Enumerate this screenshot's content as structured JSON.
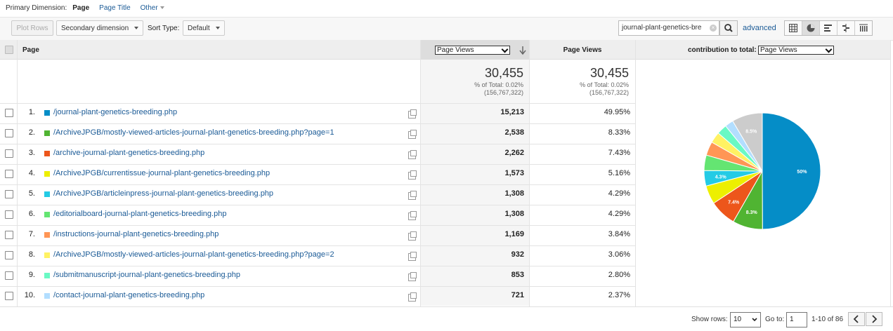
{
  "dimension_bar": {
    "label": "Primary Dimension:",
    "current": "Page",
    "options": [
      "Page Title",
      "Other"
    ]
  },
  "toolbar": {
    "plot_rows": "Plot Rows",
    "secondary_dimension": "Secondary dimension",
    "sort_type_label": "Sort Type:",
    "sort_type_value": "Default",
    "search_value": "journal-plant-genetics-bre",
    "advanced": "advanced"
  },
  "table": {
    "col_page": "Page",
    "metric_select": "Page Views",
    "col_pageviews": "Page Views",
    "contribution_label": "contribution to total:",
    "contribution_select": "Page Views",
    "totals": [
      {
        "value": "30,455",
        "pct": "% of Total: 0.02%",
        "base": "(156,767,322)"
      },
      {
        "value": "30,455",
        "pct": "% of Total: 0.02%",
        "base": "(156,767,322)"
      }
    ],
    "rows": [
      {
        "num": "1.",
        "color": "#058dc7",
        "page": "/journal-plant-genetics-breeding.php",
        "views": "15,213",
        "pct": "49.95%"
      },
      {
        "num": "2.",
        "color": "#50b432",
        "page": "/ArchiveJPGB/mostly-viewed-articles-journal-plant-genetics-breeding.php?page=1",
        "views": "2,538",
        "pct": "8.33%"
      },
      {
        "num": "3.",
        "color": "#ed561b",
        "page": "/archive-journal-plant-genetics-breeding.php",
        "views": "2,262",
        "pct": "7.43%"
      },
      {
        "num": "4.",
        "color": "#edef00",
        "page": "/ArchiveJPGB/currentissue-journal-plant-genetics-breeding.php",
        "views": "1,573",
        "pct": "5.16%"
      },
      {
        "num": "5.",
        "color": "#24cbe5",
        "page": "/ArchiveJPGB/articleinpress-journal-plant-genetics-breeding.php",
        "views": "1,308",
        "pct": "4.29%"
      },
      {
        "num": "6.",
        "color": "#64e572",
        "page": "/editorialboard-journal-plant-genetics-breeding.php",
        "views": "1,308",
        "pct": "4.29%"
      },
      {
        "num": "7.",
        "color": "#ff9655",
        "page": "/instructions-journal-plant-genetics-breeding.php",
        "views": "1,169",
        "pct": "3.84%"
      },
      {
        "num": "8.",
        "color": "#fff263",
        "page": "/ArchiveJPGB/mostly-viewed-articles-journal-plant-genetics-breeding.php?page=2",
        "views": "932",
        "pct": "3.06%"
      },
      {
        "num": "9.",
        "color": "#6af9c4",
        "page": "/submitmanuscript-journal-plant-genetics-breeding.php",
        "views": "853",
        "pct": "2.80%"
      },
      {
        "num": "10.",
        "color": "#b2deff",
        "page": "/contact-journal-plant-genetics-breeding.php",
        "views": "721",
        "pct": "2.37%"
      }
    ]
  },
  "chart_data": {
    "type": "pie",
    "slices": [
      {
        "value": 49.95,
        "color": "#058dc7",
        "label": "50%"
      },
      {
        "value": 8.33,
        "color": "#50b432",
        "label": "8.3%"
      },
      {
        "value": 7.43,
        "color": "#ed561b",
        "label": "7.4%"
      },
      {
        "value": 5.16,
        "color": "#edef00",
        "label": ""
      },
      {
        "value": 4.29,
        "color": "#24cbe5",
        "label": "4.3%"
      },
      {
        "value": 4.29,
        "color": "#64e572",
        "label": ""
      },
      {
        "value": 3.84,
        "color": "#ff9655",
        "label": ""
      },
      {
        "value": 3.06,
        "color": "#fff263",
        "label": ""
      },
      {
        "value": 2.8,
        "color": "#6af9c4",
        "label": ""
      },
      {
        "value": 2.37,
        "color": "#b2deff",
        "label": ""
      },
      {
        "value": 8.48,
        "color": "#cccccc",
        "label": "8.5%"
      }
    ]
  },
  "footer": {
    "show_rows_label": "Show rows:",
    "show_rows_value": "10",
    "goto_label": "Go to:",
    "goto_value": "1",
    "range": "1-10 of 86"
  }
}
